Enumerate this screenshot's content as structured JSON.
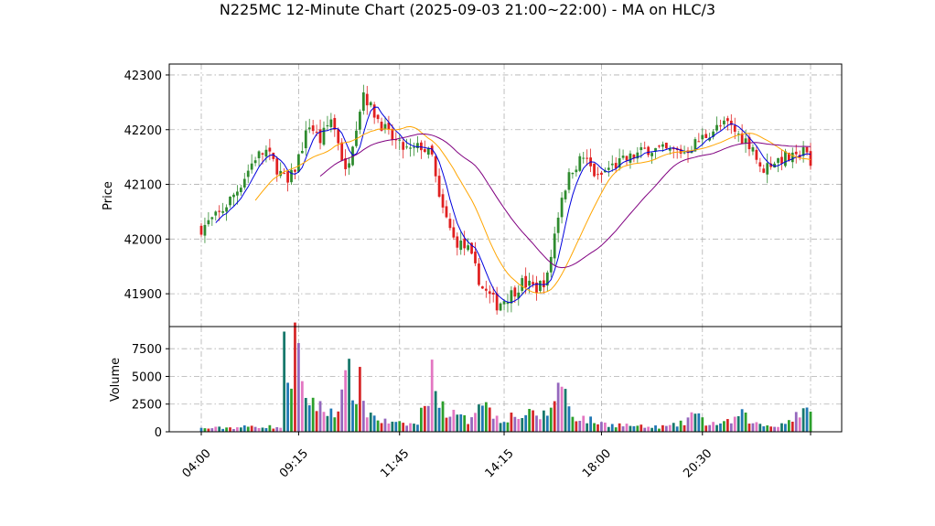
{
  "chart_data": {
    "type": "candlestick",
    "title": "N225MC 12-Minute Chart (2025-09-03 21:00~22:00) - MA on HLC/3",
    "price_panel": {
      "ylabel": "Price",
      "ylim": [
        41840,
        42320
      ],
      "yticks": [
        41900,
        42000,
        42100,
        42200,
        42300
      ],
      "grid": true
    },
    "volume_panel": {
      "ylabel": "Volume",
      "ylim": [
        0,
        9500
      ],
      "yticks": [
        0,
        2500,
        5000,
        7500
      ],
      "grid": true
    },
    "x_ticks": [
      {
        "label": "04:00",
        "idx": 0
      },
      {
        "label": "09:15",
        "idx": 27
      },
      {
        "label": "11:45",
        "idx": 55
      },
      {
        "label": "14:15",
        "idx": 84
      },
      {
        "label": "18:00",
        "idx": 111
      },
      {
        "label": "20:30",
        "idx": 139
      },
      {
        "label": "",
        "idx": 169
      }
    ],
    "colors": {
      "up": "#2e8b2e",
      "down": "#e02020",
      "ma_fast": "#0000dd",
      "ma_mid": "#ffa500",
      "ma_slow": "#800080"
    },
    "series_anchors": {
      "close": [
        [
          0,
          42020
        ],
        [
          5,
          42045
        ],
        [
          10,
          42090
        ],
        [
          15,
          42150
        ],
        [
          18,
          42160
        ],
        [
          22,
          42120
        ],
        [
          24,
          42100
        ],
        [
          26,
          42130
        ],
        [
          28,
          42170
        ],
        [
          30,
          42210
        ],
        [
          33,
          42180
        ],
        [
          36,
          42220
        ],
        [
          38,
          42180
        ],
        [
          40,
          42120
        ],
        [
          42,
          42180
        ],
        [
          45,
          42270
        ],
        [
          47,
          42240
        ],
        [
          49,
          42220
        ],
        [
          52,
          42190
        ],
        [
          55,
          42170
        ],
        [
          58,
          42160
        ],
        [
          61,
          42170
        ],
        [
          64,
          42150
        ],
        [
          66,
          42070
        ],
        [
          70,
          42000
        ],
        [
          74,
          41980
        ],
        [
          78,
          41910
        ],
        [
          82,
          41880
        ],
        [
          86,
          41900
        ],
        [
          89,
          41920
        ],
        [
          93,
          41910
        ],
        [
          96,
          41930
        ],
        [
          98,
          42010
        ],
        [
          100,
          42080
        ],
        [
          103,
          42130
        ],
        [
          106,
          42150
        ],
        [
          110,
          42110
        ],
        [
          113,
          42130
        ],
        [
          118,
          42145
        ],
        [
          124,
          42165
        ],
        [
          130,
          42160
        ],
        [
          134,
          42160
        ],
        [
          138,
          42180
        ],
        [
          142,
          42200
        ],
        [
          146,
          42210
        ],
        [
          149,
          42190
        ],
        [
          153,
          42170
        ],
        [
          155,
          42125
        ],
        [
          158,
          42140
        ],
        [
          162,
          42150
        ],
        [
          165,
          42145
        ],
        [
          167,
          42170
        ],
        [
          169,
          42130
        ]
      ],
      "volume": [
        [
          0,
          300
        ],
        [
          10,
          400
        ],
        [
          16,
          500
        ],
        [
          22,
          400
        ],
        [
          23,
          6800
        ],
        [
          25,
          5000
        ],
        [
          26,
          8500
        ],
        [
          28,
          3500
        ],
        [
          31,
          2800
        ],
        [
          34,
          1800
        ],
        [
          38,
          2200
        ],
        [
          41,
          5000
        ],
        [
          43,
          3500
        ],
        [
          44,
          4200
        ],
        [
          46,
          1800
        ],
        [
          50,
          1000
        ],
        [
          54,
          700
        ],
        [
          60,
          700
        ],
        [
          64,
          4800
        ],
        [
          65,
          6000
        ],
        [
          66,
          2500
        ],
        [
          70,
          1500
        ],
        [
          74,
          1000
        ],
        [
          78,
          3500
        ],
        [
          80,
          1800
        ],
        [
          83,
          1200
        ],
        [
          86,
          1400
        ],
        [
          90,
          1500
        ],
        [
          96,
          1500
        ],
        [
          99,
          4200
        ],
        [
          101,
          3500
        ],
        [
          103,
          1500
        ],
        [
          108,
          1000
        ],
        [
          112,
          700
        ],
        [
          118,
          600
        ],
        [
          124,
          400
        ],
        [
          130,
          500
        ],
        [
          134,
          800
        ],
        [
          136,
          1700
        ],
        [
          140,
          800
        ],
        [
          145,
          700
        ],
        [
          150,
          1500
        ],
        [
          154,
          700
        ],
        [
          158,
          500
        ],
        [
          162,
          800
        ],
        [
          166,
          1800
        ],
        [
          169,
          1500
        ]
      ],
      "count": 170
    },
    "moving_averages": [
      {
        "role": "fast",
        "window": 5
      },
      {
        "role": "mid",
        "window": 16
      },
      {
        "role": "slow",
        "window": 34
      }
    ]
  }
}
